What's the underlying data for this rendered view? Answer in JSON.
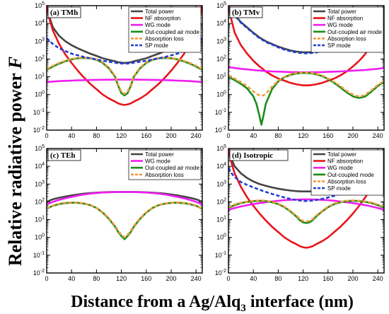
{
  "figure": {
    "ylabel": "Relative radiative power",
    "ylabel_symbol": "F",
    "xlabel_prefix": "Distance from a Ag/Alq",
    "xlabel_sub": "3",
    "xlabel_suffix": " interface (nm)"
  },
  "colors": {
    "total": "#444444",
    "nf": "#e8141b",
    "wg": "#ee1ef0",
    "oc": "#1a8c1a",
    "abs": "#f39c3c",
    "sp": "#1f3fd6"
  },
  "chart_data": [
    {
      "type": "line",
      "title": "(a) TMh",
      "x": [
        0,
        5,
        10,
        20,
        30,
        40,
        50,
        60,
        70,
        80,
        90,
        100,
        110,
        115,
        120,
        125,
        130,
        135,
        140,
        150,
        160,
        170,
        180,
        190,
        200,
        210,
        220,
        230,
        240,
        245,
        250
      ],
      "xlim": [
        0,
        250
      ],
      "xticks": [
        0,
        40,
        80,
        120,
        160,
        200,
        240
      ],
      "ylim_exp": [
        -2,
        5
      ],
      "log_y": true,
      "series": [
        {
          "name": "Total power",
          "key": "total",
          "dash": "solid",
          "values": [
            100000,
            20000,
            6000,
            2000,
            1000,
            600,
            400,
            280,
            200,
            150,
            110,
            90,
            75,
            65,
            62,
            60,
            62,
            65,
            75,
            90,
            110,
            150,
            200,
            280,
            400,
            600,
            1000,
            2000,
            6000,
            20000,
            100000
          ]
        },
        {
          "name": "NF absorption",
          "key": "nf",
          "dash": "solid",
          "values": [
            100000,
            15000,
            4000,
            700,
            180,
            60,
            22,
            9,
            4,
            2,
            1,
            0.6,
            0.4,
            0.32,
            0.28,
            0.26,
            0.28,
            0.32,
            0.4,
            0.6,
            1,
            2,
            4,
            9,
            22,
            60,
            180,
            700,
            4000,
            15000,
            100000
          ]
        },
        {
          "name": "WG mode",
          "key": "wg",
          "dash": "solid",
          "values": [
            5,
            5.2,
            5.4,
            5.7,
            5.9,
            6.1,
            6.3,
            6.5,
            6.6,
            6.7,
            6.8,
            6.85,
            6.9,
            6.9,
            6.9,
            6.9,
            6.9,
            6.9,
            6.9,
            6.85,
            6.8,
            6.7,
            6.6,
            6.5,
            6.3,
            6.1,
            5.9,
            5.7,
            5.4,
            5.2,
            5
          ]
        },
        {
          "name": "Out-coupled air mode",
          "key": "oc",
          "dash": "solid",
          "values": [
            25,
            30,
            38,
            55,
            75,
            95,
            110,
            115,
            110,
            90,
            60,
            30,
            10,
            3,
            1.2,
            0.9,
            1.2,
            3,
            10,
            30,
            60,
            90,
            110,
            115,
            110,
            95,
            75,
            55,
            38,
            30,
            25
          ]
        },
        {
          "name": "Absorption loss",
          "key": "abs",
          "dash": "dash",
          "values": [
            28,
            33,
            42,
            60,
            80,
            100,
            115,
            120,
            115,
            95,
            65,
            33,
            11,
            3.5,
            1.5,
            1.1,
            1.5,
            3.5,
            11,
            33,
            65,
            95,
            115,
            120,
            115,
            100,
            80,
            60,
            42,
            33,
            28
          ]
        },
        {
          "name": "SP mode",
          "key": "sp",
          "dash": "dash",
          "values": [
            1500,
            1000,
            700,
            400,
            280,
            200,
            160,
            130,
            110,
            95,
            80,
            70,
            62,
            58,
            56,
            55,
            56,
            58,
            62,
            70,
            80,
            95,
            110,
            130,
            160,
            200,
            280,
            400,
            700,
            1000,
            1500
          ]
        }
      ]
    },
    {
      "type": "line",
      "title": "(b) TMv",
      "x": [
        0,
        5,
        10,
        20,
        30,
        40,
        45,
        50,
        53,
        56,
        60,
        70,
        80,
        90,
        100,
        110,
        120,
        130,
        140,
        150,
        160,
        170,
        180,
        190,
        200,
        205,
        210,
        215,
        220,
        230,
        240,
        245,
        250
      ],
      "xlim": [
        0,
        250
      ],
      "xticks": [
        0,
        40,
        80,
        120,
        160,
        200,
        240
      ],
      "ylim_exp": [
        -2,
        5
      ],
      "log_y": true,
      "series": [
        {
          "name": "Total power",
          "key": "total",
          "dash": "solid",
          "values": [
            80000,
            50000,
            30000,
            12000,
            6000,
            3000,
            2200,
            1600,
            1400,
            1200,
            1000,
            700,
            500,
            380,
            300,
            260,
            240,
            240,
            260,
            300,
            380,
            500,
            700,
            1000,
            1600,
            2000,
            2500,
            3200,
            4000,
            7000,
            15000,
            30000,
            100000
          ]
        },
        {
          "name": "NF absorption",
          "key": "nf",
          "dash": "solid",
          "values": [
            100000,
            15000,
            3000,
            600,
            200,
            80,
            55,
            38,
            32,
            26,
            20,
            12,
            8,
            6,
            4.5,
            3.7,
            3.3,
            3.3,
            3.7,
            4.5,
            6,
            8,
            12,
            20,
            38,
            55,
            80,
            120,
            200,
            600,
            3000,
            15000,
            100000
          ]
        },
        {
          "name": "WG mode",
          "key": "wg",
          "dash": "solid",
          "values": [
            35,
            33,
            31,
            28,
            26,
            24,
            23,
            22.5,
            22,
            21.5,
            21,
            20,
            19.5,
            19,
            18.5,
            18.2,
            18,
            18,
            18.2,
            18.5,
            19,
            19.5,
            20,
            21,
            22,
            22.5,
            23,
            23.5,
            24,
            26,
            28,
            30,
            32
          ]
        },
        {
          "name": "Out-coupled air mode",
          "key": "oc",
          "dash": "solid",
          "values": [
            10,
            8,
            6.5,
            4,
            2.2,
            0.8,
            0.3,
            0.06,
            0.02,
            0.06,
            0.3,
            2,
            5.5,
            9.5,
            13,
            15.5,
            16.5,
            16,
            14,
            11,
            7.5,
            4.5,
            2.5,
            1.3,
            0.8,
            0.7,
            0.65,
            0.7,
            0.8,
            1.5,
            3,
            4,
            5
          ]
        },
        {
          "name": "Absorption loss",
          "key": "abs",
          "dash": "dash",
          "values": [
            12,
            10,
            8,
            5,
            3,
            1.5,
            1.1,
            0.9,
            0.85,
            0.9,
            1.1,
            2.8,
            6,
            10,
            14,
            16.5,
            17.5,
            17,
            15,
            12,
            8,
            5,
            3,
            1.6,
            1,
            0.85,
            0.8,
            0.85,
            1,
            1.8,
            3.5,
            4.5,
            6
          ]
        },
        {
          "name": "SP mode",
          "key": "sp",
          "dash": "dash",
          "values": [
            70000,
            45000,
            28000,
            11000,
            5500,
            2800,
            2000,
            1500,
            1300,
            1100,
            900,
            650,
            450,
            340,
            270,
            230,
            210,
            210,
            230,
            270,
            340,
            450,
            650,
            900,
            1500,
            1800,
            2200,
            2800,
            3500,
            6000,
            13000,
            25000,
            80000
          ]
        }
      ]
    },
    {
      "type": "line",
      "title": "(c) TEh",
      "x": [
        0,
        5,
        10,
        20,
        30,
        40,
        50,
        60,
        70,
        80,
        90,
        100,
        110,
        115,
        120,
        125,
        130,
        135,
        140,
        150,
        160,
        170,
        180,
        190,
        200,
        210,
        220,
        230,
        240,
        245,
        250
      ],
      "xlim": [
        0,
        250
      ],
      "xticks": [
        0,
        40,
        80,
        120,
        160,
        200,
        240
      ],
      "ylim_exp": [
        -2,
        5
      ],
      "log_y": true,
      "series": [
        {
          "name": "Total power",
          "key": "total",
          "dash": "solid",
          "values": [
            100,
            120,
            140,
            170,
            200,
            230,
            260,
            290,
            310,
            330,
            345,
            355,
            360,
            362,
            363,
            363,
            363,
            362,
            360,
            355,
            345,
            330,
            310,
            290,
            260,
            230,
            200,
            170,
            140,
            120,
            100
          ]
        },
        {
          "name": "WG mode",
          "key": "wg",
          "dash": "solid",
          "values": [
            70,
            85,
            100,
            130,
            160,
            190,
            225,
            260,
            290,
            315,
            335,
            345,
            355,
            358,
            360,
            360,
            360,
            358,
            355,
            345,
            335,
            315,
            290,
            260,
            225,
            190,
            160,
            130,
            100,
            85,
            70
          ]
        },
        {
          "name": "Out-coupled air mode",
          "key": "oc",
          "dash": "solid",
          "values": [
            40,
            50,
            60,
            75,
            85,
            90,
            88,
            80,
            65,
            45,
            25,
            11,
            4,
            2,
            1.2,
            0.8,
            1.2,
            2,
            4,
            11,
            25,
            45,
            65,
            80,
            88,
            90,
            85,
            75,
            60,
            50,
            40
          ]
        },
        {
          "name": "Absorption loss",
          "key": "abs",
          "dash": "dash",
          "values": [
            42,
            52,
            62,
            78,
            88,
            93,
            90,
            82,
            67,
            46,
            26,
            12,
            4.5,
            2.3,
            1.4,
            1,
            1.4,
            2.3,
            4.5,
            12,
            26,
            46,
            67,
            82,
            90,
            93,
            88,
            78,
            62,
            52,
            42
          ]
        }
      ]
    },
    {
      "type": "line",
      "title": "(d) Isotropic",
      "x": [
        0,
        5,
        10,
        20,
        30,
        40,
        50,
        60,
        70,
        80,
        90,
        100,
        110,
        115,
        120,
        125,
        130,
        135,
        140,
        150,
        160,
        170,
        180,
        190,
        200,
        210,
        220,
        230,
        240,
        245,
        250
      ],
      "xlim": [
        0,
        250
      ],
      "xticks": [
        0,
        40,
        80,
        120,
        160,
        200,
        240
      ],
      "ylim_exp": [
        -2,
        5
      ],
      "log_y": true,
      "series": [
        {
          "name": "Total power",
          "key": "total",
          "dash": "solid",
          "values": [
            100000,
            25000,
            10000,
            4000,
            2200,
            1400,
            1000,
            800,
            650,
            550,
            480,
            430,
            400,
            390,
            385,
            385,
            385,
            390,
            400,
            430,
            480,
            550,
            650,
            800,
            1000,
            1400,
            2200,
            4000,
            10000,
            25000,
            100000
          ]
        },
        {
          "name": "NF absorption",
          "key": "nf",
          "dash": "solid",
          "values": [
            100000,
            15000,
            4000,
            700,
            180,
            60,
            22,
            9,
            4,
            2,
            1,
            0.6,
            0.4,
            0.32,
            0.28,
            0.26,
            0.28,
            0.32,
            0.4,
            0.6,
            1,
            2,
            4,
            9,
            22,
            60,
            180,
            700,
            4000,
            15000,
            100000
          ]
        },
        {
          "name": "WG mode",
          "key": "wg",
          "dash": "solid",
          "values": [
            35,
            40,
            45,
            55,
            65,
            75,
            85,
            95,
            105,
            115,
            125,
            130,
            135,
            137,
            138,
            138,
            138,
            137,
            135,
            130,
            125,
            115,
            105,
            95,
            85,
            75,
            65,
            55,
            45,
            40,
            35
          ]
        },
        {
          "name": "Out-coupled mode",
          "key": "oc",
          "dash": "solid",
          "values": [
            45,
            55,
            65,
            85,
            100,
            110,
            115,
            110,
            95,
            75,
            50,
            28,
            14,
            9,
            7,
            6.5,
            7,
            9,
            14,
            28,
            50,
            75,
            95,
            110,
            115,
            110,
            100,
            85,
            65,
            55,
            45
          ]
        },
        {
          "name": "Absorption loss",
          "key": "abs",
          "dash": "dash",
          "values": [
            50,
            60,
            72,
            90,
            105,
            115,
            120,
            115,
            100,
            80,
            54,
            30,
            16,
            10.5,
            8.5,
            8,
            8.5,
            10.5,
            16,
            30,
            54,
            80,
            100,
            115,
            120,
            115,
            105,
            90,
            72,
            60,
            50
          ]
        },
        {
          "name": "SP mode",
          "key": "sp",
          "dash": "dash",
          "values": [
            8000,
            4000,
            2500,
            1300,
            900,
            650,
            480,
            360,
            280,
            220,
            175,
            145,
            125,
            118,
            114,
            112,
            114,
            118,
            125,
            145,
            175,
            220,
            280,
            360,
            480,
            650,
            900,
            1300,
            2500,
            4000,
            8000
          ]
        }
      ]
    }
  ]
}
